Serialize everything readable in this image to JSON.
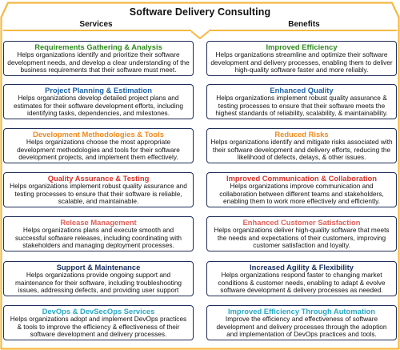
{
  "title": "Software Delivery Consulting",
  "columns": {
    "left": "Services",
    "right": "Benefits"
  },
  "colors": {
    "frame": "#f5b942",
    "card_border": "#1f2d5a"
  },
  "services": [
    {
      "title": "Requirements Gathering & Analysis",
      "color": "#2e8b1e",
      "text": "Helps organizations identify and prioritize their software development needs, and develop a clear understanding of the business requirements that their software must meet."
    },
    {
      "title": "Project Planning & Estimation",
      "color": "#1f63a8",
      "text": "Helps organizations develop detailed project plans and estimates for their software development efforts, including identifying tasks, dependencies, and milestones."
    },
    {
      "title": "Development Methodologies & Tools",
      "color": "#f08a1c",
      "text": "Helps organizations choose the most appropriate development methodologies and tools for their software development projects, and implement them effectively."
    },
    {
      "title": "Quality Assurance & Testing",
      "color": "#d9342b",
      "text": "Helps organizations implement robust quality assurance and testing processes to ensure that their software is reliable, scalable, and maintainable."
    },
    {
      "title": "Release Management",
      "color": "#e0605a",
      "text": "Helps organizations plans and execute smooth and successful software releases, including coordinating with stakeholders and managing deployment processes."
    },
    {
      "title": "Support & Maintenance",
      "color": "#1a2f5e",
      "text": "Helps organizations provide ongoing support and maintenance for their software, including troubleshooting issues, addressing defects, and providing user support"
    },
    {
      "title": "DevOps & DevSecOps Services",
      "color": "#27a9c7",
      "text": "Helps organizations adopt and implement DevOps practices & tools to improve the efficiency & effectiveness of their software development and delivery processes."
    }
  ],
  "benefits": [
    {
      "title": "Improved Efficiency",
      "color": "#2e8b1e",
      "text": "Helps organizations streamline and optimize their software development and delivery processes, enabling them to deliver high-quality software faster and more reliably."
    },
    {
      "title": "Enhanced Quality",
      "color": "#1f63a8",
      "text": "Helps organizations implement robust quality assurance & testing processes to ensure that their software meets the highest standards of reliability, scalability, & maintainability."
    },
    {
      "title": "Reduced Risks",
      "color": "#f08a1c",
      "text": "Helps organizations identify and mitigate risks associated with their software development and delivery efforts, reducing the likelihood of defects, delays, & other issues."
    },
    {
      "title": "Improved Communication & Collaboration",
      "color": "#d9342b",
      "text": "Helps organizations improve communication and collaboration between different teams and stakeholders, enabling them to work more effectively and efficiently."
    },
    {
      "title": "Enhanced Customer Satisfaction",
      "color": "#e0605a",
      "text": "Helps organizations deliver high-quality software that meets the needs and expectations of their customers, improving customer satisfaction and loyalty."
    },
    {
      "title": "Increased Agility & Flexibility",
      "color": "#1a2f5e",
      "text": "Helps organizations respond faster to changing market conditions & customer needs, enabling to adapt & evolve software development & delivery processes as needed."
    },
    {
      "title": "Improved Efficiency Through Automation",
      "color": "#27a9c7",
      "text": "Improve the efficiency and effectiveness of software development and delivery processes through the adoption and implementation of DevOps practices and tools."
    }
  ]
}
